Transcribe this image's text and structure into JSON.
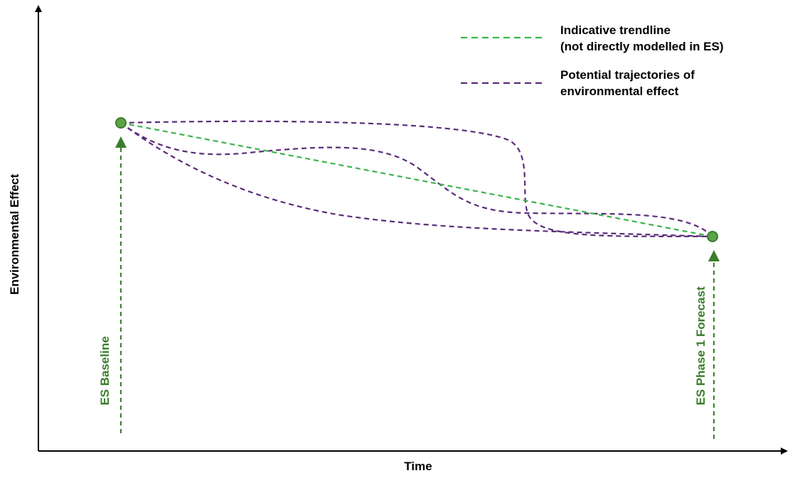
{
  "axes": {
    "x_label": "Time",
    "y_label": "Environmental Effect"
  },
  "legend": {
    "items": [
      {
        "lines": [
          "Indicative trendline",
          "(not directly modelled in ES)"
        ],
        "color": "#3cb44b",
        "style": "dashed"
      },
      {
        "lines": [
          "Potential trajectories of",
          "environmental effect"
        ],
        "color": "#5b2c7a",
        "style": "dashed"
      }
    ]
  },
  "markers": {
    "baseline_label": "ES Baseline",
    "forecast_label": "ES Phase 1 Forecast",
    "color": "#3a7d2c",
    "point_fill": "#5aa546"
  },
  "colors": {
    "axis": "#000000",
    "trendline": "#3cb44b",
    "trajectory": "#5b2c7a"
  }
}
